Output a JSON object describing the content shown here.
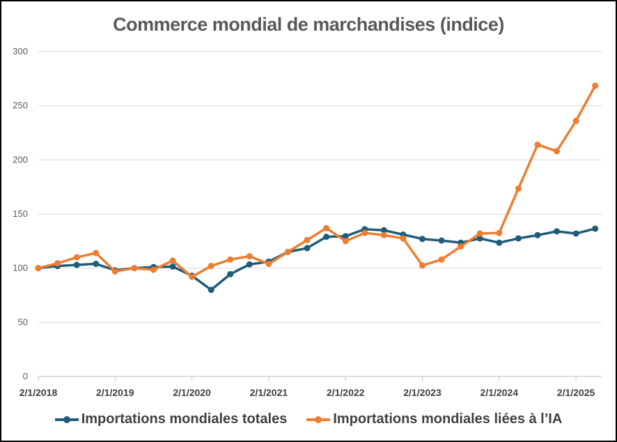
{
  "chart_data": {
    "type": "line",
    "title": "Commerce mondial de marchandises (indice)",
    "xlabel": "",
    "ylabel": "",
    "ylim": [
      0,
      300
    ],
    "yticks": [
      "0",
      "50",
      "100",
      "150",
      "200",
      "250",
      "300"
    ],
    "xtick_labels": [
      "2/1/2018",
      "2/1/2019",
      "2/1/2020",
      "2/1/2021",
      "2/1/2022",
      "2/1/2023",
      "2/1/2024",
      "2/1/2025"
    ],
    "grid": true,
    "legend_position": "bottom",
    "x": [
      "2018-02",
      "2018-05",
      "2018-08",
      "2018-11",
      "2019-02",
      "2019-05",
      "2019-08",
      "2019-11",
      "2020-02",
      "2020-05",
      "2020-08",
      "2020-11",
      "2021-02",
      "2021-05",
      "2021-08",
      "2021-11",
      "2022-02",
      "2022-05",
      "2022-08",
      "2022-11",
      "2023-02",
      "2023-05",
      "2023-08",
      "2023-11",
      "2024-02",
      "2024-05",
      "2024-08",
      "2024-11",
      "2025-02",
      "2025-05"
    ],
    "series": [
      {
        "name": "Importations mondiales totales",
        "color": "#1F5C7A",
        "values": [
          100,
          102,
          103,
          104,
          98,
          100,
          101,
          101.5,
          93,
          80,
          94.5,
          103.5,
          106,
          115,
          118.5,
          129,
          129.5,
          136,
          135,
          131,
          127,
          125.5,
          123.5,
          127.5,
          123.5,
          127.5,
          130.5,
          134,
          132,
          136.5
        ]
      },
      {
        "name": "Importations mondiales liées à l’IA",
        "color": "#ED7D31",
        "values": [
          100,
          104.5,
          110,
          114,
          97,
          100,
          98.5,
          107,
          92,
          102,
          108,
          111,
          104,
          115,
          126,
          137,
          125,
          132.5,
          130.5,
          127.5,
          102.5,
          108,
          120,
          132,
          132.5,
          173.5,
          214,
          208,
          236,
          268.5
        ]
      }
    ]
  }
}
